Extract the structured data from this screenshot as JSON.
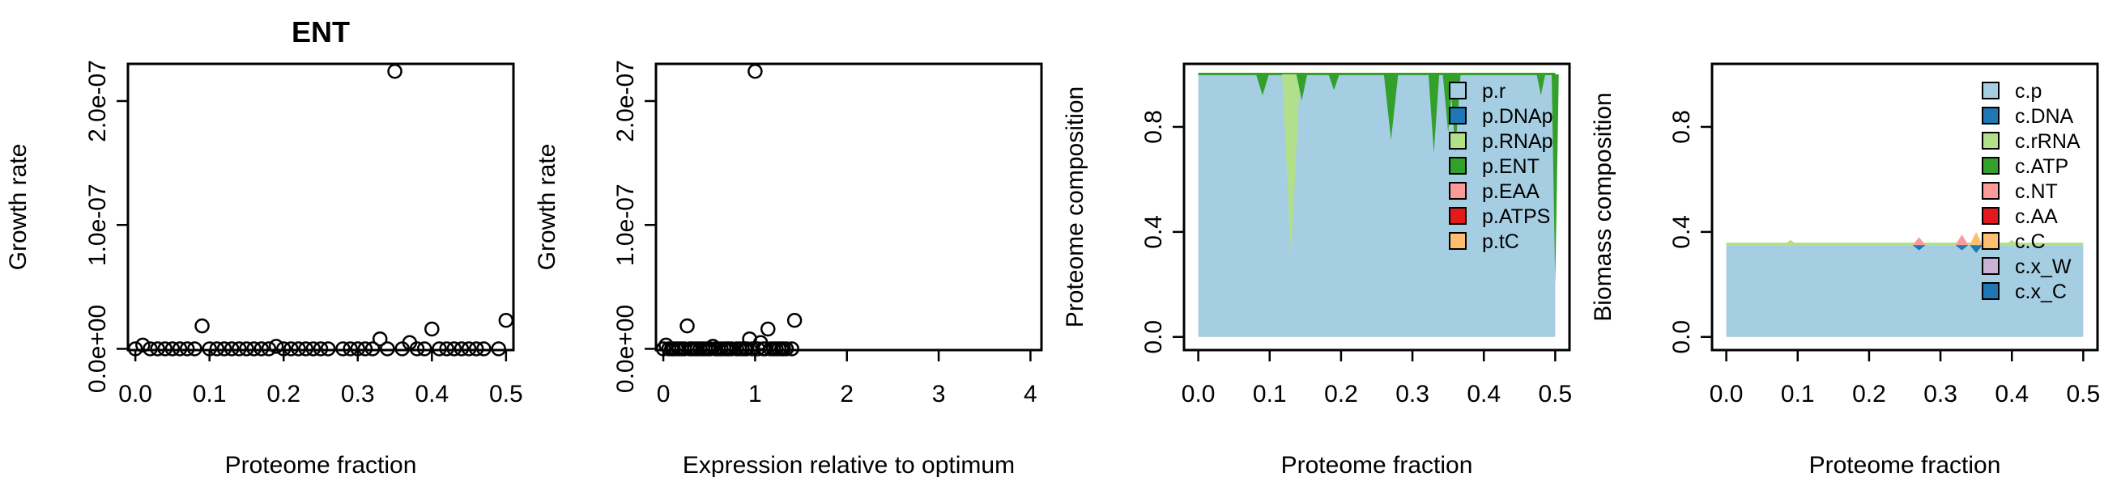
{
  "chart_data": [
    {
      "type": "scatter",
      "title": "ENT",
      "xlabel": "Proteome fraction",
      "ylabel": "Growth rate",
      "xlim": [
        -0.01,
        0.51
      ],
      "ylim": [
        -1e-09,
        2.3e-07
      ],
      "xticks": [
        "0.0",
        "0.1",
        "0.2",
        "0.3",
        "0.4",
        "0.5"
      ],
      "yticks": [
        "0.0e+00",
        "1.0e-07",
        "2.0e-07"
      ],
      "x": [
        0.0,
        0.01,
        0.02,
        0.03,
        0.04,
        0.05,
        0.06,
        0.07,
        0.08,
        0.09,
        0.1,
        0.11,
        0.12,
        0.13,
        0.14,
        0.15,
        0.16,
        0.17,
        0.18,
        0.19,
        0.2,
        0.21,
        0.22,
        0.23,
        0.24,
        0.25,
        0.26,
        0.28,
        0.29,
        0.3,
        0.31,
        0.32,
        0.33,
        0.34,
        0.35,
        0.36,
        0.37,
        0.38,
        0.39,
        0.4,
        0.41,
        0.42,
        0.43,
        0.44,
        0.45,
        0.46,
        0.47,
        0.49,
        0.5
      ],
      "y": [
        0,
        3e-09,
        0,
        0,
        0,
        0,
        0,
        0,
        0,
        1.85e-08,
        0,
        0,
        0,
        0,
        0,
        0,
        0,
        0,
        0,
        2e-09,
        0,
        0,
        0,
        0,
        0,
        0,
        0,
        0,
        0,
        0,
        0,
        0,
        8e-09,
        0,
        2.24e-07,
        0,
        5e-09,
        0,
        0,
        1.6e-08,
        0,
        0,
        0,
        0,
        0,
        0,
        0,
        0,
        2.3e-08
      ]
    },
    {
      "type": "scatter",
      "xlabel": "Expression relative to optimum",
      "ylabel": "Growth rate",
      "xlim": [
        -0.08,
        4.12
      ],
      "ylim": [
        -1e-09,
        2.3e-07
      ],
      "xticks": [
        "0",
        "1",
        "2",
        "3",
        "4"
      ],
      "yticks": [
        "0.0e+00",
        "1.0e-07",
        "2.0e-07"
      ],
      "x": [
        0.0,
        0.03,
        0.06,
        0.09,
        0.11,
        0.14,
        0.17,
        0.2,
        0.23,
        0.26,
        0.29,
        0.31,
        0.34,
        0.37,
        0.4,
        0.43,
        0.46,
        0.49,
        0.51,
        0.54,
        0.57,
        0.6,
        0.63,
        0.66,
        0.69,
        0.71,
        0.74,
        0.8,
        0.83,
        0.86,
        0.89,
        0.91,
        0.94,
        0.97,
        1.0,
        1.03,
        1.06,
        1.09,
        1.11,
        1.14,
        1.17,
        1.2,
        1.23,
        1.26,
        1.29,
        1.31,
        1.34,
        1.4,
        1.43
      ],
      "y": [
        0,
        3e-09,
        0,
        0,
        0,
        0,
        0,
        0,
        0,
        1.85e-08,
        0,
        0,
        0,
        0,
        0,
        0,
        0,
        0,
        0,
        2e-09,
        0,
        0,
        0,
        0,
        0,
        0,
        0,
        0,
        0,
        0,
        0,
        0,
        8e-09,
        0,
        2.24e-07,
        0,
        5e-09,
        0,
        0,
        1.6e-08,
        0,
        0,
        0,
        0,
        0,
        0,
        0,
        0,
        2.3e-08
      ]
    },
    {
      "type": "area",
      "xlabel": "Proteome fraction",
      "ylabel": "Proteome composition",
      "xlim": [
        -0.02,
        0.52
      ],
      "ylim": [
        -0.05,
        1.04
      ],
      "xticks": [
        "0.0",
        "0.1",
        "0.2",
        "0.3",
        "0.4",
        "0.5"
      ],
      "yticks": [
        "0.0",
        "0.4",
        "0.8"
      ],
      "legend": {
        "position": "top-right",
        "entries": [
          {
            "name": "p.r",
            "color": "#A6CEE3"
          },
          {
            "name": "p.DNAp",
            "color": "#1F78B4"
          },
          {
            "name": "p.RNAp",
            "color": "#B2DF8A"
          },
          {
            "name": "p.ENT",
            "color": "#33A02C"
          },
          {
            "name": "p.EAA",
            "color": "#FB9A99"
          },
          {
            "name": "p.ATPS",
            "color": "#E31A1C"
          },
          {
            "name": "p.tC",
            "color": "#FDBF6F"
          }
        ]
      },
      "base_series": {
        "name": "p.r",
        "value": 1.0
      },
      "dips": [
        {
          "series": "p.ENT",
          "x": 0.09,
          "depth": 0.08,
          "width": 0.018
        },
        {
          "series": "p.RNAp",
          "x": 0.13,
          "depth": 0.7,
          "width": 0.025
        },
        {
          "series": "p.ENT",
          "x": 0.145,
          "depth": 0.1,
          "width": 0.015
        },
        {
          "series": "p.ENT",
          "x": 0.19,
          "depth": 0.06,
          "width": 0.015
        },
        {
          "series": "p.ENT",
          "x": 0.27,
          "depth": 0.25,
          "width": 0.02
        },
        {
          "series": "p.ENT",
          "x": 0.33,
          "depth": 0.3,
          "width": 0.015
        },
        {
          "series": "p.ENT",
          "x": 0.35,
          "depth": 0.22,
          "width": 0.015
        },
        {
          "series": "p.ENT",
          "x": 0.36,
          "depth": 0.3,
          "width": 0.015
        },
        {
          "series": "p.ENT",
          "x": 0.48,
          "depth": 0.08,
          "width": 0.012
        },
        {
          "series": "p.ENT",
          "x": 0.5,
          "depth": 0.8,
          "width": 0.01
        }
      ]
    },
    {
      "type": "area",
      "xlabel": "Proteome fraction",
      "ylabel": "Biomass composition",
      "xlim": [
        -0.02,
        0.52
      ],
      "ylim": [
        -0.05,
        1.04
      ],
      "xticks": [
        "0.0",
        "0.1",
        "0.2",
        "0.3",
        "0.4",
        "0.5"
      ],
      "yticks": [
        "0.0",
        "0.4",
        "0.8"
      ],
      "legend": {
        "position": "top-right",
        "entries": [
          {
            "name": "c.p",
            "color": "#A6CEE3"
          },
          {
            "name": "c.DNA",
            "color": "#1F78B4"
          },
          {
            "name": "c.rRNA",
            "color": "#B2DF8A"
          },
          {
            "name": "c.ATP",
            "color": "#33A02C"
          },
          {
            "name": "c.NT",
            "color": "#FB9A99"
          },
          {
            "name": "c.AA",
            "color": "#E31A1C"
          },
          {
            "name": "c.C",
            "color": "#FDBF6F"
          },
          {
            "name": "c.x_W",
            "color": "#CAB2D6"
          },
          {
            "name": "c.x_C",
            "color": "#1F78B4"
          }
        ]
      },
      "base_series": {
        "name": "c.p",
        "value": 0.35
      },
      "bumps": [
        {
          "series": "c.rRNA",
          "x": 0.09,
          "height": 0.02
        },
        {
          "series": "c.DNA",
          "x": 0.27,
          "height": -0.02
        },
        {
          "series": "c.NT",
          "x": 0.27,
          "height": 0.03
        },
        {
          "series": "c.DNA",
          "x": 0.33,
          "height": -0.02
        },
        {
          "series": "c.NT",
          "x": 0.33,
          "height": 0.04
        },
        {
          "series": "c.DNA",
          "x": 0.35,
          "height": -0.03
        },
        {
          "series": "c.C",
          "x": 0.35,
          "height": 0.05
        },
        {
          "series": "c.NT",
          "x": 0.37,
          "height": 0.03
        },
        {
          "series": "c.rRNA",
          "x": 0.4,
          "height": 0.02
        }
      ]
    }
  ]
}
